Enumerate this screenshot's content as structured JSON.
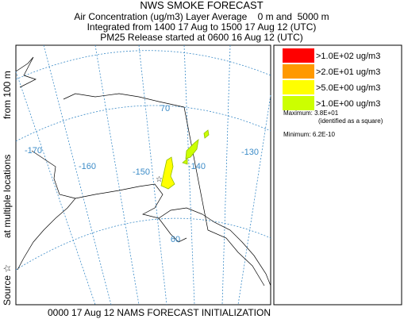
{
  "header": {
    "title": "NWS SMOKE FORECAST",
    "lines": [
      "Air Concentration (ug/m3) Layer Average    0 m and  5000 m",
      "Integrated from 1400 17 Aug to 1500 17 Aug 12 (UTC)",
      "PM25 Release started at 0600 16 Aug 12 (UTC)"
    ]
  },
  "side_labels": [
    "Source ☆",
    "at multiple locations",
    "from   100 m"
  ],
  "map": {
    "graticule_labels": [
      "-170",
      "-160",
      "-150",
      "-140",
      "-130",
      "70",
      "60"
    ]
  },
  "legend": {
    "entries": [
      {
        "label": ">1.0E+02 ug/m3",
        "color": "#ff0000"
      },
      {
        "label": ">2.0E+01 ug/m3",
        "color": "#ff9900"
      },
      {
        "label": ">5.0E+00 ug/m3",
        "color": "#ffff00"
      },
      {
        "label": ">1.0E+00 ug/m3",
        "color": "#ccff00"
      }
    ],
    "maximum": "Maximum: 3.8E+01",
    "max_note": "(identified as a square)",
    "minimum": "Minimum: 6.2E-10"
  },
  "footer": "0000 17 Aug 12 NAMS FORECAST INITIALIZATION"
}
